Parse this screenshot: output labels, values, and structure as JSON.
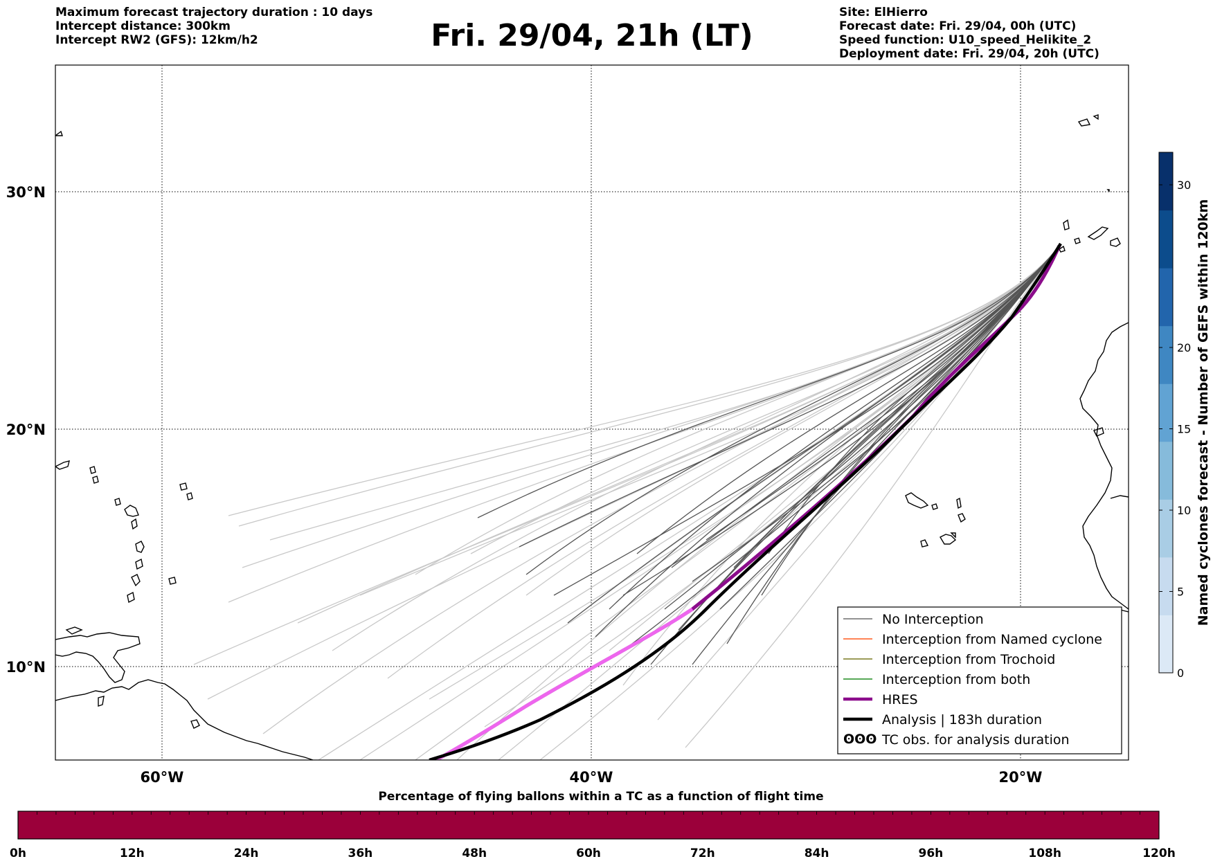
{
  "header": {
    "left_lines": [
      "Maximum forecast trajectory duration : 10 days",
      "Intercept distance: 300km",
      "Intercept RW2 (GFS):  12km/h2"
    ],
    "title": "Fri. 29/04, 21h (LT)",
    "right_lines": [
      "Site: ElHierro",
      "Forecast date: Fri. 29/04, 00h (UTC)",
      "Speed function: U10_speed_Helikite_2",
      "Deployment date: Fri. 29/04, 20h (UTC)"
    ]
  },
  "map": {
    "lon_range": [
      -65,
      15
    ],
    "lat_range": [
      5.5,
      35
    ],
    "lon_gridlines": [
      -60,
      -40,
      -20
    ],
    "lon_labels": [
      "60°W",
      "40°W",
      "20°W"
    ],
    "lat_gridlines": [
      30,
      20,
      10
    ],
    "lat_labels": [
      "30°N",
      "20°N",
      "10°N"
    ],
    "colors": {
      "no_interception_dark": "#555555",
      "no_interception_light": "#c8c8c8",
      "named_cyclone": "#ff5a1e",
      "trochoid": "#7a7a20",
      "both": "#1e8c1e",
      "hres": "#8b0c8b",
      "hres_early": "#ee66ee",
      "analysis": "#000000"
    }
  },
  "legend": {
    "items": [
      {
        "label": "No Interception",
        "color": "#6e6e6e",
        "kind": "thin"
      },
      {
        "label": "Interception from Named cyclone",
        "color": "#ff5a1e",
        "kind": "thin"
      },
      {
        "label": "Interception from Trochoid",
        "color": "#7a7a20",
        "kind": "thin"
      },
      {
        "label": "Interception from both",
        "color": "#1e8c1e",
        "kind": "thin"
      },
      {
        "label": "HRES",
        "color": "#8b0c8b",
        "kind": "thick"
      },
      {
        "label": "Analysis | 183h duration",
        "color": "#000000",
        "kind": "thick"
      },
      {
        "label": "TC obs. for analysis duration",
        "color": "#000000",
        "kind": "symbol",
        "symbol": "ʘʘʘ"
      }
    ]
  },
  "colorbar": {
    "title": "Named cyclones forecast - Number of GEFS within 120km",
    "ticks": [
      0,
      5,
      10,
      15,
      20,
      30
    ],
    "range": [
      0,
      32
    ],
    "colors": [
      "#dce9f6",
      "#c7dbef",
      "#a9cde5",
      "#86bbdb",
      "#61a3d3",
      "#3f87c2",
      "#2265ac",
      "#0c4c8c",
      "#08306b"
    ]
  },
  "bottom_bar": {
    "title": "Percentage of flying ballons within a TC as a function of flight time",
    "ticks": [
      "0h",
      "12h",
      "24h",
      "36h",
      "48h",
      "60h",
      "72h",
      "84h",
      "96h",
      "108h",
      "120h"
    ],
    "color": "#9b003a",
    "segments": 60
  }
}
